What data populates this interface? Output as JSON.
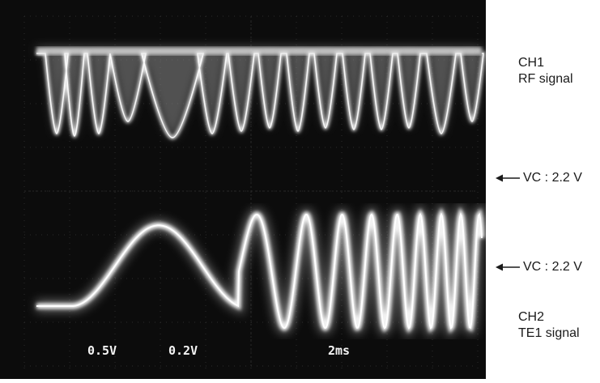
{
  "screen": {
    "readouts": [
      "0.5V",
      "0.2V",
      "2ms"
    ]
  },
  "labels": {
    "ch1": {
      "name": "CH1",
      "signal": "RF signal"
    },
    "vc_top": "VC : 2.2 V",
    "vc_bottom": "VC : 2.2 V",
    "ch2": {
      "name": "CH2",
      "signal": "TE1 signal"
    }
  },
  "colors": {
    "screen_bg": "#0c0c0c",
    "trace": "#f2f2f2",
    "graticule": "#3a3a3a",
    "label_text": "#1a1a1a"
  }
}
